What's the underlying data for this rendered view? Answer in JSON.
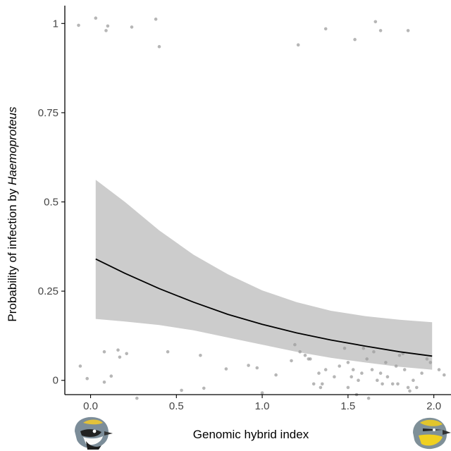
{
  "chart_data": {
    "type": "scatter",
    "xlabel": "Genomic hybrid index",
    "ylabel_prefix": "Probability of infection by ",
    "ylabel_italic": "Haemoproteus",
    "xlim": [
      -0.15,
      2.1
    ],
    "ylim": [
      -0.04,
      1.05
    ],
    "x_ticks": [
      {
        "value": 0.0,
        "label": "0.0"
      },
      {
        "value": 0.5,
        "label": "0.5"
      },
      {
        "value": 1.0,
        "label": "1.0"
      },
      {
        "value": 1.5,
        "label": "1.5"
      },
      {
        "value": 2.0,
        "label": "2.0"
      }
    ],
    "y_ticks": [
      {
        "value": 0,
        "label": "0"
      },
      {
        "value": 0.25,
        "label": "0.25"
      },
      {
        "value": 0.5,
        "label": "0.5"
      },
      {
        "value": 0.75,
        "label": "0.75"
      },
      {
        "value": 1,
        "label": "1"
      }
    ],
    "grid": false,
    "colors": {
      "points": "#9e9e9e",
      "ribbon": "#cccccc",
      "line": "#000000",
      "axis": "#000000"
    },
    "points": [
      [
        -0.07,
        0.995
      ],
      [
        0.03,
        1.015
      ],
      [
        0.09,
        0.98
      ],
      [
        0.1,
        0.993
      ],
      [
        0.24,
        0.99
      ],
      [
        0.38,
        1.012
      ],
      [
        0.4,
        0.935
      ],
      [
        1.21,
        0.94
      ],
      [
        1.37,
        0.985
      ],
      [
        1.54,
        0.955
      ],
      [
        1.66,
        1.005
      ],
      [
        1.69,
        0.98
      ],
      [
        1.85,
        0.98
      ],
      [
        -0.06,
        0.04
      ],
      [
        -0.02,
        0.005
      ],
      [
        0.08,
        0.08
      ],
      [
        0.08,
        -0.005
      ],
      [
        0.12,
        0.012
      ],
      [
        0.16,
        0.085
      ],
      [
        0.17,
        0.065
      ],
      [
        0.21,
        0.075
      ],
      [
        0.27,
        -0.05
      ],
      [
        0.45,
        0.08
      ],
      [
        0.53,
        -0.028
      ],
      [
        0.64,
        0.07
      ],
      [
        0.66,
        -0.022
      ],
      [
        0.79,
        0.032
      ],
      [
        0.92,
        0.042
      ],
      [
        0.97,
        0.035
      ],
      [
        1.0,
        -0.035
      ],
      [
        1.08,
        0.015
      ],
      [
        1.17,
        0.055
      ],
      [
        1.19,
        0.1
      ],
      [
        1.22,
        0.08
      ],
      [
        1.25,
        0.07
      ],
      [
        1.27,
        0.06
      ],
      [
        1.28,
        0.06
      ],
      [
        1.3,
        -0.01
      ],
      [
        1.33,
        0.02
      ],
      [
        1.34,
        -0.02
      ],
      [
        1.35,
        -0.01
      ],
      [
        1.37,
        0.03
      ],
      [
        1.42,
        0.01
      ],
      [
        1.45,
        0.04
      ],
      [
        1.48,
        0.09
      ],
      [
        1.5,
        0.05
      ],
      [
        1.5,
        -0.02
      ],
      [
        1.52,
        0.01
      ],
      [
        1.53,
        0.03
      ],
      [
        1.55,
        -0.04
      ],
      [
        1.56,
        0.0
      ],
      [
        1.58,
        0.02
      ],
      [
        1.59,
        0.09
      ],
      [
        1.61,
        0.06
      ],
      [
        1.62,
        -0.05
      ],
      [
        1.64,
        0.03
      ],
      [
        1.65,
        0.08
      ],
      [
        1.67,
        0.0
      ],
      [
        1.69,
        0.02
      ],
      [
        1.7,
        -0.01
      ],
      [
        1.72,
        0.05
      ],
      [
        1.73,
        0.01
      ],
      [
        1.76,
        -0.01
      ],
      [
        1.78,
        0.04
      ],
      [
        1.79,
        -0.01
      ],
      [
        1.8,
        0.07
      ],
      [
        1.82,
        0.075
      ],
      [
        1.83,
        0.03
      ],
      [
        1.85,
        -0.02
      ],
      [
        1.86,
        -0.03
      ],
      [
        1.88,
        0.0
      ],
      [
        1.9,
        -0.02
      ],
      [
        1.93,
        0.02
      ],
      [
        1.96,
        0.06
      ],
      [
        1.98,
        0.05
      ],
      [
        2.03,
        0.03
      ],
      [
        2.06,
        0.015
      ]
    ],
    "fit": {
      "x": [
        0.03,
        0.2,
        0.4,
        0.6,
        0.8,
        1.0,
        1.2,
        1.4,
        1.6,
        1.8,
        1.99
      ],
      "y": [
        0.34,
        0.3,
        0.257,
        0.219,
        0.185,
        0.157,
        0.133,
        0.113,
        0.096,
        0.08,
        0.068
      ],
      "lower": [
        0.172,
        0.165,
        0.155,
        0.14,
        0.12,
        0.1,
        0.08,
        0.063,
        0.05,
        0.038,
        0.03
      ],
      "upper": [
        0.562,
        0.5,
        0.42,
        0.352,
        0.297,
        0.252,
        0.219,
        0.195,
        0.18,
        0.17,
        0.163
      ]
    },
    "legend_icons": [
      {
        "name": "Golden-winged warbler",
        "position": "bottom-left"
      },
      {
        "name": "Blue-winged warbler",
        "position": "bottom-right"
      }
    ]
  }
}
